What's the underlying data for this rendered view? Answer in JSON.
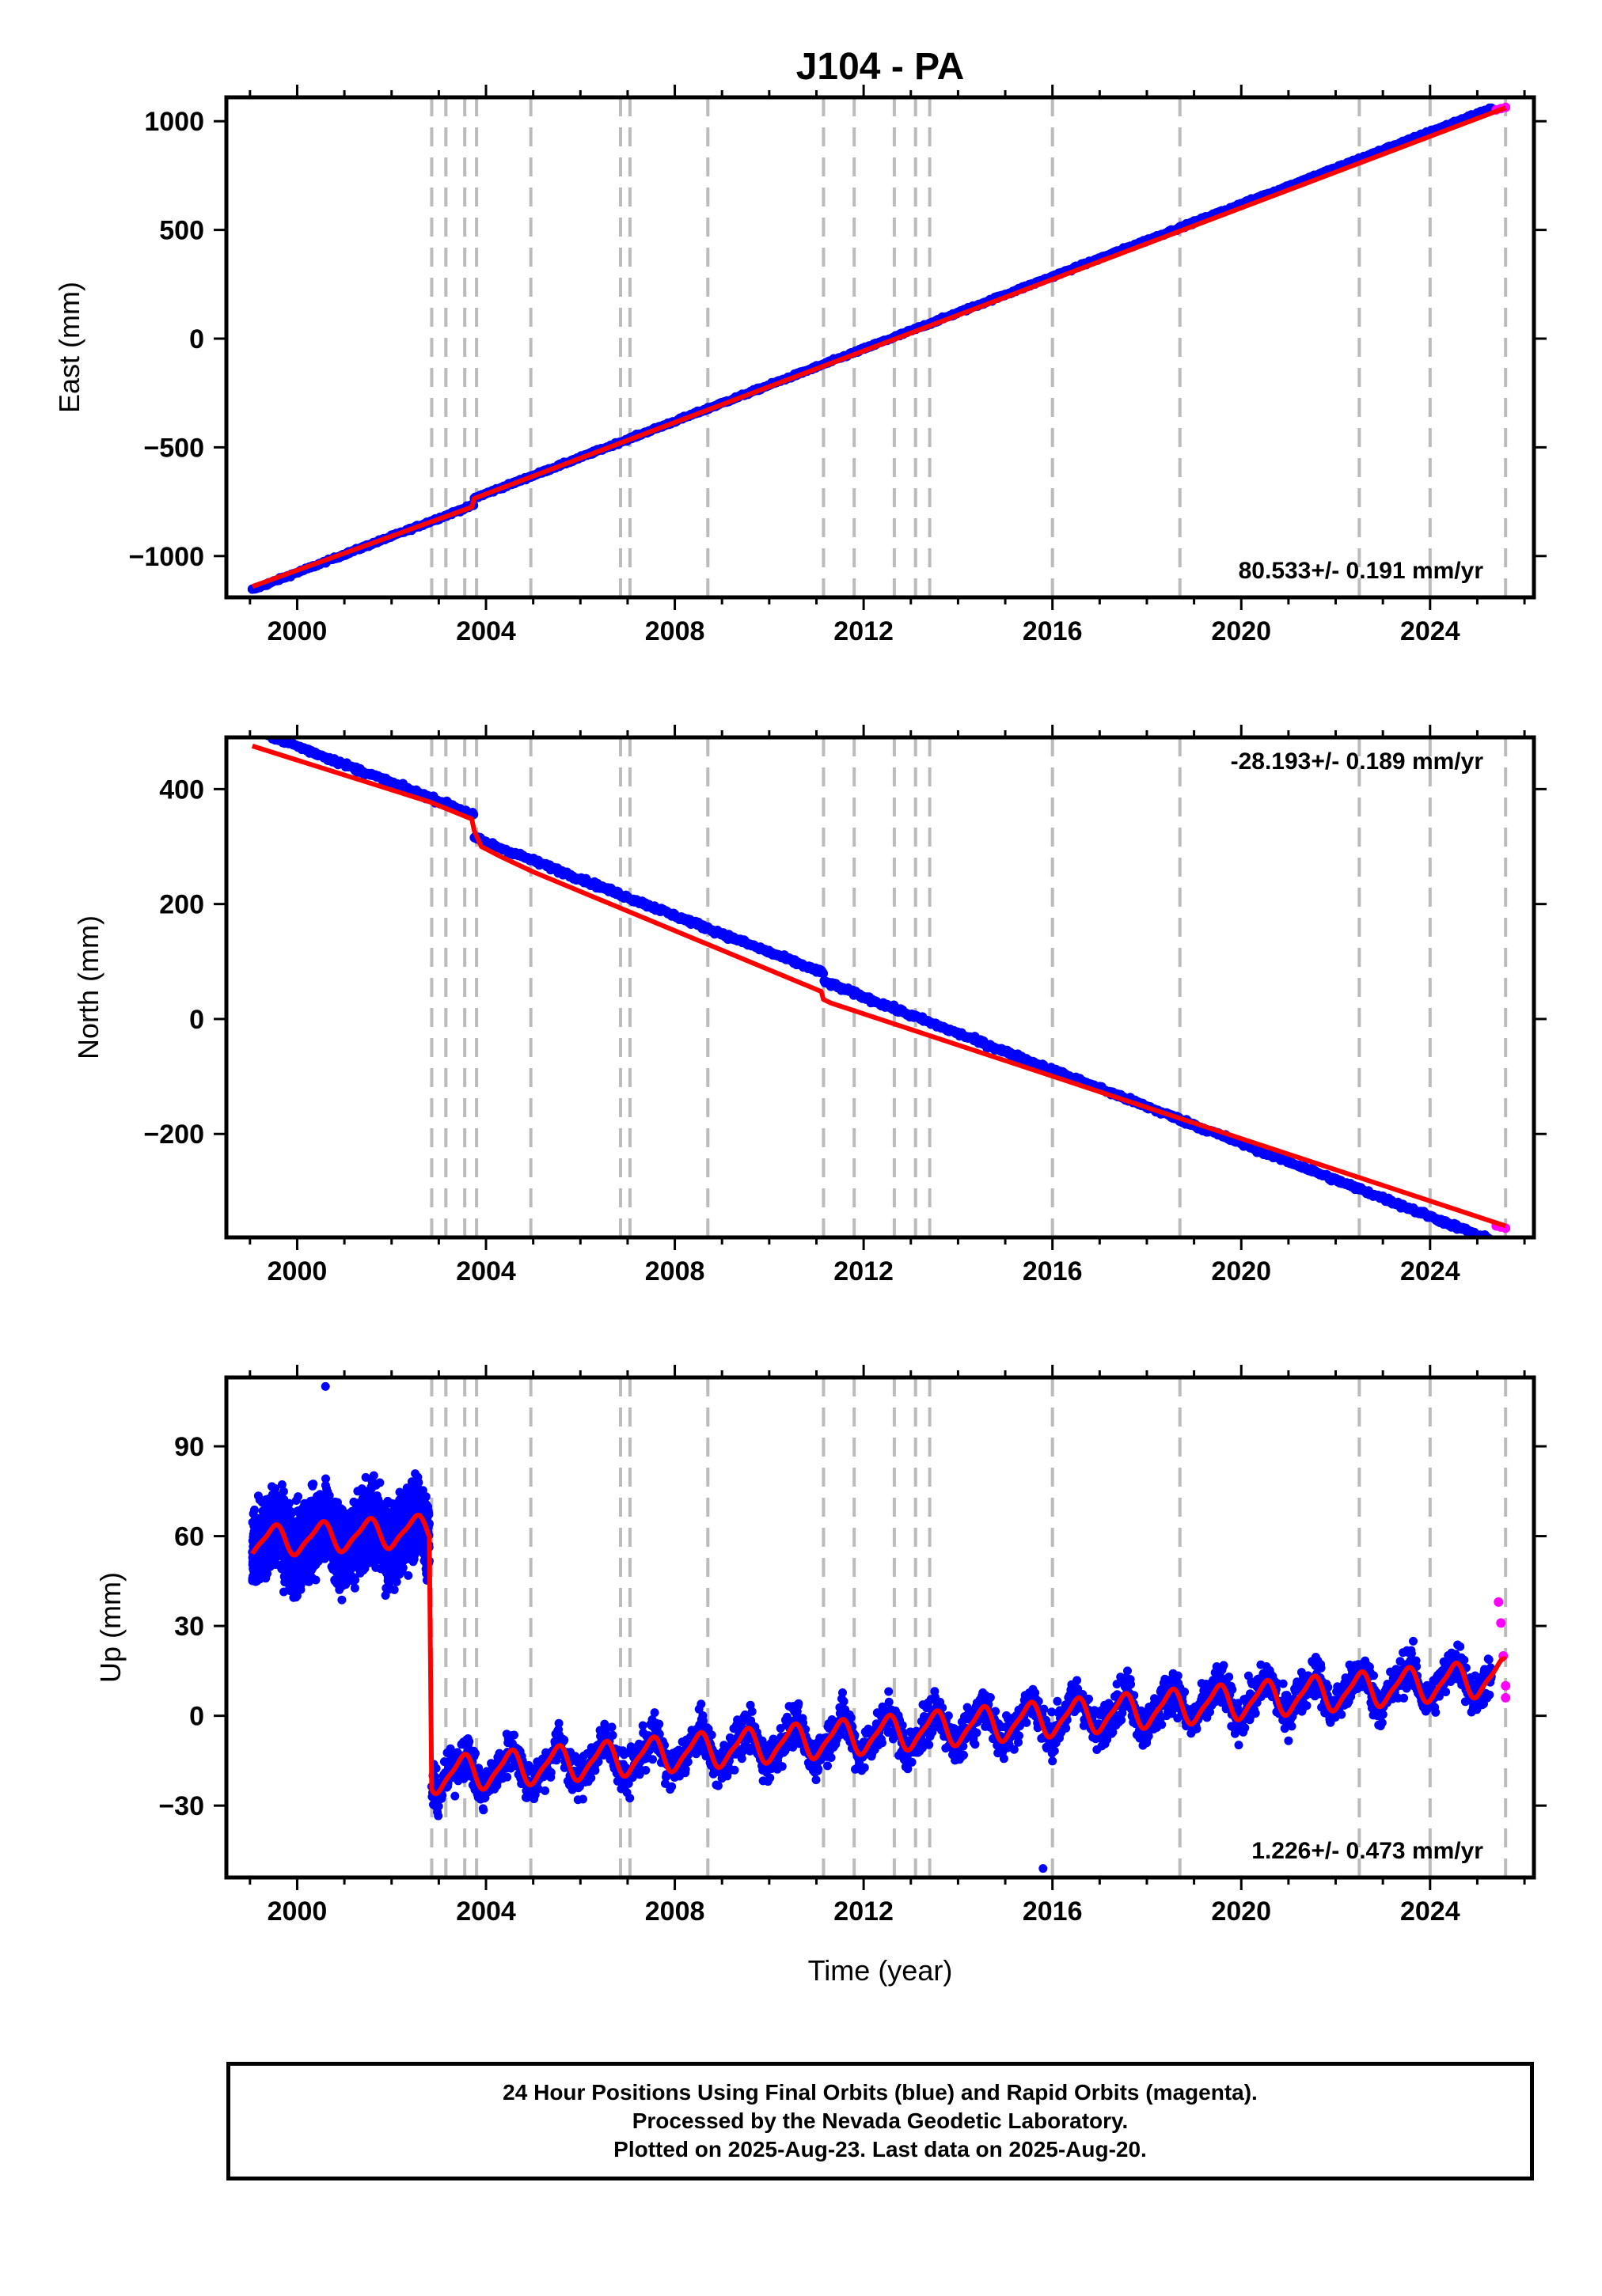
{
  "title": "J104 - PA",
  "footer": {
    "line1": "24 Hour Positions Using Final Orbits (blue) and Rapid Orbits (magenta).",
    "line2": "Processed by the Nevada Geodetic Laboratory.",
    "line3": "Plotted on 2025-Aug-23. Last data on 2025-Aug-20."
  },
  "colors": {
    "final": "#0000ff",
    "rapid": "#ff00ff",
    "model": "#ff0000",
    "event": "#bbbbbb"
  },
  "chart_data": [
    {
      "type": "scatter",
      "ylabel": "East (mm)",
      "xlim": [
        1998.5,
        2026.2
      ],
      "ylim": [
        -1190,
        1110
      ],
      "xticks": [
        2000,
        2004,
        2008,
        2012,
        2016,
        2020,
        2024
      ],
      "xtick_labels": [
        "2000",
        "2004",
        "2008",
        "2012",
        "2016",
        "2020",
        "2024"
      ],
      "yticks": [
        -1000,
        -500,
        0,
        500,
        1000
      ],
      "ytick_labels": [
        "−1000",
        "−500",
        "0",
        "500",
        "1000"
      ],
      "rate": "80.533+/- 0.191 mm/yr",
      "rate_position": "bottom-right",
      "series": [
        {
          "kind": "final",
          "start": [
            1999.05,
            -1140
          ],
          "end": [
            2025.3,
            1045
          ]
        },
        {
          "kind": "rapid",
          "x": [
            2025.4,
            2025.5,
            2025.6
          ],
          "y": [
            1052,
            1058,
            1064
          ]
        },
        {
          "kind": "model",
          "x": [
            1999.05,
            2003.7,
            2003.75,
            2025.6
          ],
          "y": [
            -1140,
            -775,
            -735,
            1062
          ]
        }
      ]
    },
    {
      "type": "scatter",
      "ylabel": "North (mm)",
      "xlim": [
        1998.5,
        2026.2
      ],
      "ylim": [
        -380,
        490
      ],
      "xticks": [
        2000,
        2004,
        2008,
        2012,
        2016,
        2020,
        2024
      ],
      "xtick_labels": [
        "2000",
        "2004",
        "2008",
        "2012",
        "2016",
        "2020",
        "2024"
      ],
      "yticks": [
        -200,
        0,
        200,
        400
      ],
      "ytick_labels": [
        "−200",
        "0",
        "200",
        "400"
      ],
      "rate": "-28.193+/- 0.189 mm/yr",
      "rate_position": "top-right",
      "series": [
        {
          "kind": "final",
          "start": [
            1999.05,
            478
          ],
          "end": [
            2025.3,
            -358
          ]
        },
        {
          "kind": "rapid",
          "x": [
            2025.4,
            2025.5,
            2025.6
          ],
          "y": [
            -360,
            -362,
            -364
          ]
        },
        {
          "kind": "model",
          "x": [
            1999.05,
            2002.8,
            2003.7,
            2003.75,
            2003.9,
            2004.3,
            2005.0,
            2011.1,
            2011.15,
            2011.3,
            2025.6
          ],
          "y": [
            475,
            378,
            348,
            328,
            300,
            283,
            256,
            48,
            34,
            28,
            -360
          ]
        }
      ]
    },
    {
      "type": "scatter",
      "ylabel": "Up (mm)",
      "xlabel": "Time (year)",
      "xlim": [
        1998.5,
        2026.2
      ],
      "ylim": [
        -54,
        113
      ],
      "xticks": [
        2000,
        2004,
        2008,
        2012,
        2016,
        2020,
        2024
      ],
      "xtick_labels": [
        "2000",
        "2004",
        "2008",
        "2012",
        "2016",
        "2020",
        "2024"
      ],
      "yticks": [
        -30,
        0,
        30,
        60,
        90
      ],
      "ytick_labels": [
        "−30",
        "0",
        "30",
        "60",
        "90"
      ],
      "rate": "1.226+/- 0.473 mm/yr",
      "rate_position": "bottom-right",
      "series": [
        {
          "kind": "final",
          "segments": [
            {
              "x": [
                1999.05,
                2002.8
              ],
              "base": [
                58,
                62
              ],
              "amplitude": 6,
              "scatter": 9
            },
            {
              "x": [
                2002.85,
                2025.3
              ],
              "base": [
                -20,
                13
              ],
              "amplitude": 7,
              "scatter": 5
            }
          ],
          "outliers": {
            "x": [
              2000.6,
              2015.8
            ],
            "y": [
              110,
              -51
            ]
          }
        },
        {
          "kind": "rapid",
          "x": [
            2025.45,
            2025.5,
            2025.55,
            2025.6,
            2025.6
          ],
          "y": [
            38,
            31,
            20,
            10,
            6
          ]
        },
        {
          "kind": "model",
          "segments": [
            {
              "x": [
                1999.05,
                2002.8
              ],
              "base": [
                58,
                62
              ],
              "amplitude": 6
            },
            {
              "x": [
                2002.85,
                2025.6
              ],
              "base": [
                -20,
                13
              ],
              "amplitude": 7
            }
          ]
        }
      ]
    }
  ],
  "event_lines": [
    2002.85,
    2003.15,
    2003.55,
    2003.8,
    2004.95,
    2006.85,
    2007.05,
    2008.7,
    2011.15,
    2011.8,
    2012.65,
    2013.1,
    2013.4,
    2016.0,
    2018.7,
    2022.5,
    2024.0,
    2025.6
  ]
}
